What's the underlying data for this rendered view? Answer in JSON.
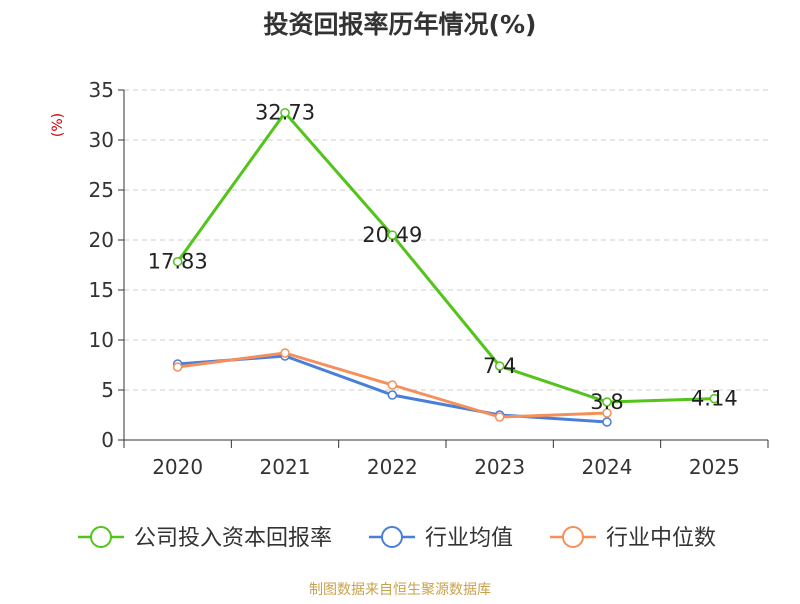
{
  "chart_data": {
    "type": "line",
    "title": "投资回报率历年情况(%)",
    "ylabel": "(%)",
    "xlabel": "",
    "categories": [
      "2020",
      "2021",
      "2022",
      "2023",
      "2024",
      "2025"
    ],
    "ylim": [
      0,
      35
    ],
    "yticks": [
      0,
      5,
      10,
      15,
      20,
      25,
      30,
      35
    ],
    "grid": true,
    "legend_position": "bottom",
    "series": [
      {
        "name": "公司投入资本回报率",
        "color": "#52c41a",
        "values": [
          17.83,
          32.73,
          20.49,
          7.4,
          3.8,
          4.14
        ],
        "labels": [
          "17.83",
          "32.73",
          "20.49",
          "7.4",
          "3.8",
          "4.14"
        ]
      },
      {
        "name": "行业均值",
        "color": "#4a7fd9",
        "values": [
          7.6,
          8.4,
          4.5,
          2.5,
          1.8,
          null
        ]
      },
      {
        "name": "行业中位数",
        "color": "#f5905a",
        "values": [
          7.3,
          8.7,
          5.5,
          2.3,
          2.7,
          null
        ]
      }
    ],
    "source": "制图数据来自恒生聚源数据库"
  },
  "colors": {
    "title": "#333333",
    "axis": "#333333",
    "grid": "#cccccc",
    "ylabel": "#cc0000",
    "source": "#c8a24a"
  }
}
